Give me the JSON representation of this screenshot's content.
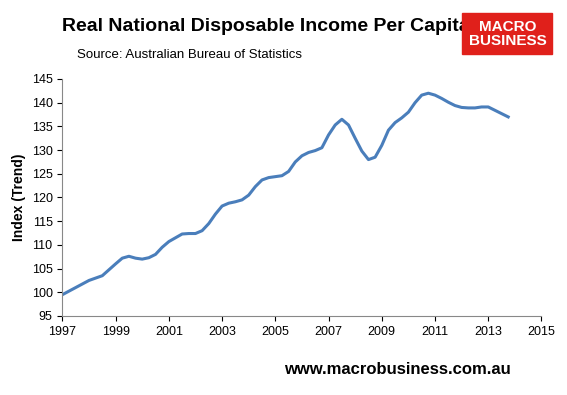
{
  "chart_data": {
    "type": "line",
    "title": "Real National Disposable Income Per Capita",
    "subtitle": "Source: Australian Bureau of Statistics",
    "y_label": "Index (Trend)",
    "logo": "MACRO\nBUSINESS",
    "footer": "www.macrobusiness.com.au",
    "color": "#4a7ebb",
    "grid": false,
    "x": [
      1997.0,
      1997.5,
      1998.0,
      1998.5,
      1999.0,
      1999.25,
      1999.5,
      1999.75,
      2000.0,
      2000.25,
      2000.5,
      2000.75,
      2001.0,
      2001.25,
      2001.5,
      2001.75,
      2002.0,
      2002.25,
      2002.5,
      2002.75,
      2003.0,
      2003.25,
      2003.5,
      2003.75,
      2004.0,
      2004.25,
      2004.5,
      2004.75,
      2005.0,
      2005.25,
      2005.5,
      2005.75,
      2006.0,
      2006.25,
      2006.5,
      2006.75,
      2007.0,
      2007.25,
      2007.5,
      2007.75,
      2008.0,
      2008.25,
      2008.5,
      2008.75,
      2009.0,
      2009.25,
      2009.5,
      2009.75,
      2010.0,
      2010.25,
      2010.5,
      2010.75,
      2011.0,
      2011.25,
      2011.5,
      2011.75,
      2012.0,
      2012.25,
      2012.5,
      2012.75,
      2013.0,
      2013.25,
      2013.5,
      2013.75
    ],
    "values": [
      99.5,
      101.0,
      102.5,
      103.5,
      106.0,
      107.2,
      107.6,
      107.2,
      107.0,
      107.3,
      108.0,
      109.5,
      110.7,
      111.5,
      112.3,
      112.4,
      112.4,
      113.0,
      114.5,
      116.5,
      118.2,
      118.8,
      119.1,
      119.5,
      120.5,
      122.3,
      123.7,
      124.2,
      124.4,
      124.6,
      125.5,
      127.5,
      128.8,
      129.5,
      129.9,
      130.5,
      133.2,
      135.3,
      136.5,
      135.3,
      132.5,
      129.8,
      128.0,
      128.5,
      131.0,
      134.2,
      135.8,
      136.8,
      138.0,
      140.0,
      141.6,
      142.0,
      141.6,
      140.9,
      140.1,
      139.4,
      139.0,
      138.9,
      138.9,
      139.1,
      139.1,
      138.4,
      137.7,
      137.0
    ],
    "xlim": [
      1997,
      2015
    ],
    "xticks": [
      1997,
      1999,
      2001,
      2003,
      2005,
      2007,
      2009,
      2011,
      2013,
      2015
    ],
    "ylim": [
      95,
      145
    ],
    "yticks": [
      95,
      100,
      105,
      110,
      115,
      120,
      125,
      130,
      135,
      140,
      145
    ]
  }
}
